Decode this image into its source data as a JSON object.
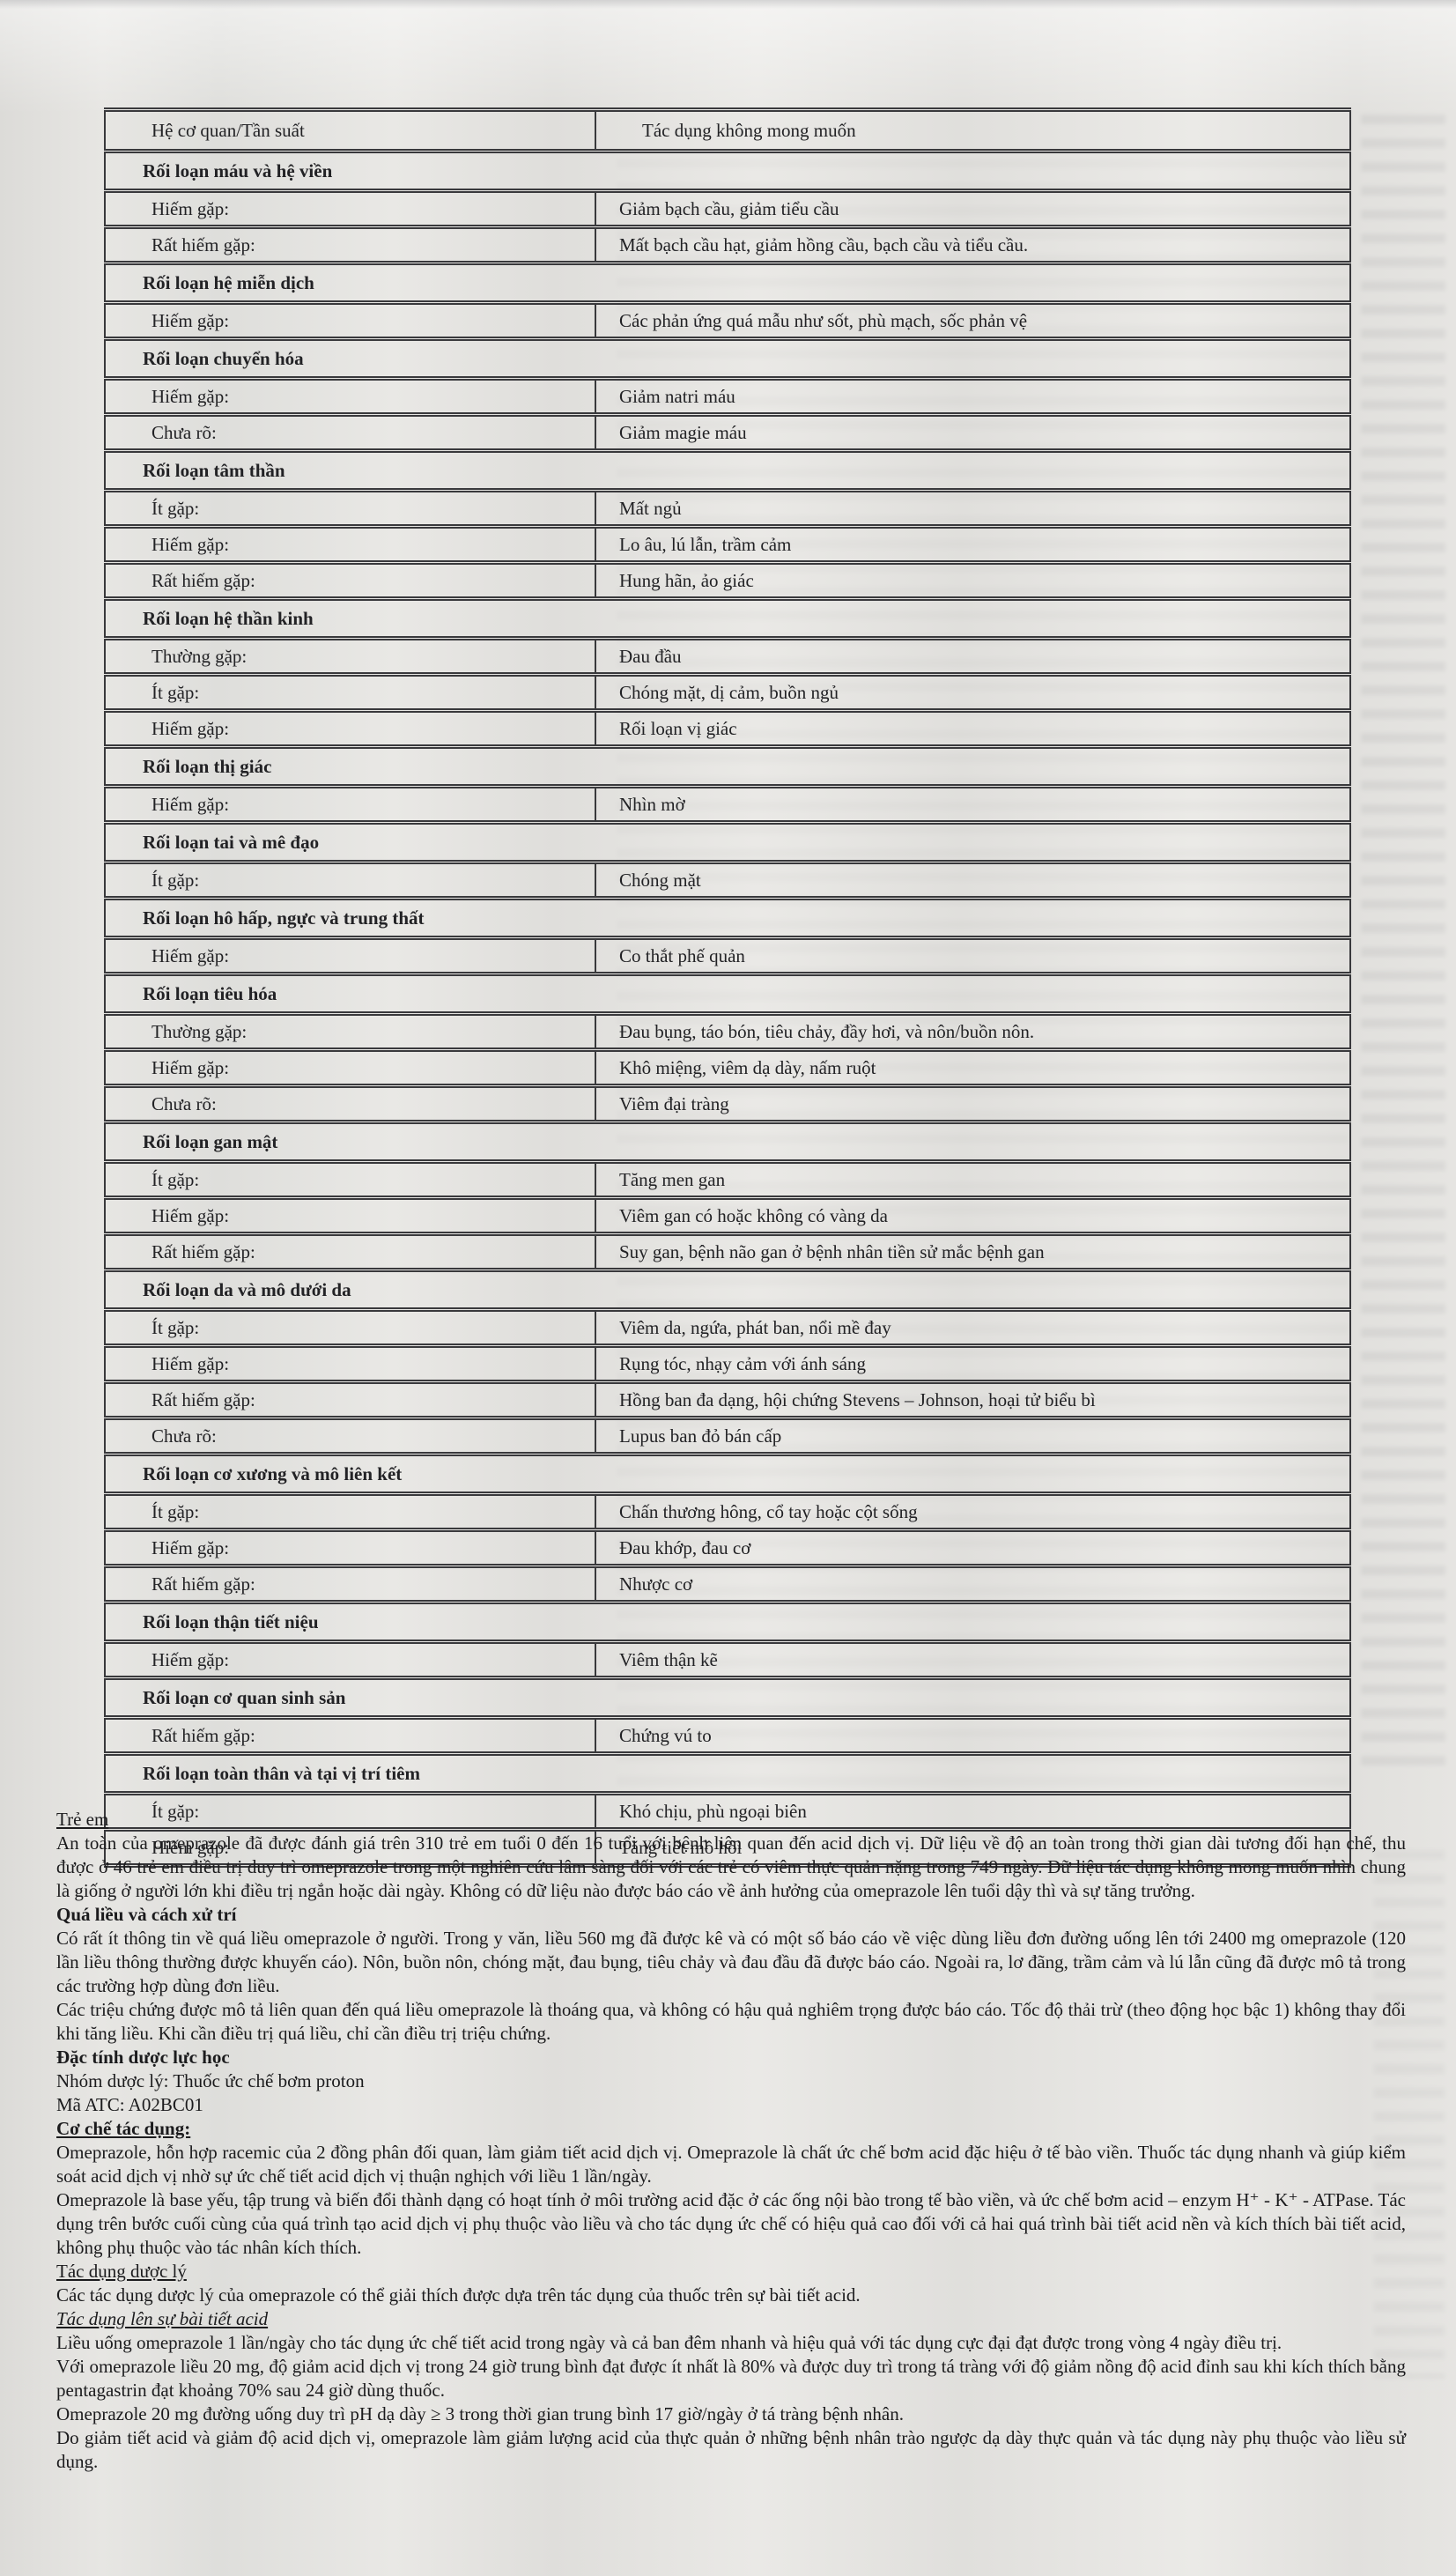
{
  "page": {
    "background": "#e3e2df",
    "text_color": "#1d1d1f",
    "border_color": "#39393c",
    "document_type": "scanned-drug-leaflet"
  },
  "table": {
    "header": {
      "organ_col": "Hệ cơ quan/Tần suất",
      "effect_col": "Tác dụng không mong muốn"
    },
    "rows": [
      {
        "type": "section",
        "label": "Rối loạn máu và hệ viền"
      },
      {
        "type": "entry",
        "frequency": "Hiếm gặp:",
        "effect": "Giảm bạch cầu, giảm tiểu cầu"
      },
      {
        "type": "entry",
        "frequency": "Rất hiếm gặp:",
        "effect": "Mất bạch cầu hạt, giảm hồng cầu, bạch cầu và tiểu cầu."
      },
      {
        "type": "section",
        "label": "Rối loạn hệ miễn dịch"
      },
      {
        "type": "entry",
        "frequency": "Hiếm gặp:",
        "effect": "Các phản ứng quá mẫu như sốt, phù mạch, sốc phản vệ"
      },
      {
        "type": "section",
        "label": "Rối loạn chuyển hóa"
      },
      {
        "type": "entry",
        "frequency": "Hiếm gặp:",
        "effect": "Giảm natri máu"
      },
      {
        "type": "entry",
        "frequency": "Chưa rõ:",
        "effect": "Giảm magie máu"
      },
      {
        "type": "section",
        "label": "Rối loạn tâm thần"
      },
      {
        "type": "entry",
        "frequency": "Ít gặp:",
        "effect": "Mất ngủ"
      },
      {
        "type": "entry",
        "frequency": "Hiếm gặp:",
        "effect": "Lo âu, lú lẫn, trầm cảm"
      },
      {
        "type": "entry",
        "frequency": "Rất hiếm gặp:",
        "effect": "Hung hãn, ảo giác"
      },
      {
        "type": "section",
        "label": "Rối loạn hệ thần kinh"
      },
      {
        "type": "entry",
        "frequency": "Thường gặp:",
        "effect": "Đau đầu"
      },
      {
        "type": "entry",
        "frequency": "Ít gặp:",
        "effect": "Chóng mặt, dị cảm, buồn ngủ"
      },
      {
        "type": "entry",
        "frequency": "Hiếm gặp:",
        "effect": "Rối loạn vị giác"
      },
      {
        "type": "section",
        "label": "Rối loạn thị giác"
      },
      {
        "type": "entry",
        "frequency": "Hiếm gặp:",
        "effect": "Nhìn mờ"
      },
      {
        "type": "section",
        "label": "Rối loạn tai và mê đạo"
      },
      {
        "type": "entry",
        "frequency": "Ít gặp:",
        "effect": "Chóng mặt"
      },
      {
        "type": "section",
        "label": "Rối loạn hô hấp, ngực và trung thất"
      },
      {
        "type": "entry",
        "frequency": "Hiếm gặp:",
        "effect": "Co thắt phế quản"
      },
      {
        "type": "section",
        "label": "Rối loạn tiêu hóa"
      },
      {
        "type": "entry",
        "frequency": "Thường gặp:",
        "effect": "Đau bụng, táo bón, tiêu chảy, đầy hơi, và nôn/buồn nôn."
      },
      {
        "type": "entry",
        "frequency": "Hiếm gặp:",
        "effect": "Khô miệng, viêm dạ dày, nấm ruột"
      },
      {
        "type": "entry",
        "frequency": "Chưa rõ:",
        "effect": "Viêm đại tràng"
      },
      {
        "type": "section",
        "label": "Rối loạn gan mật"
      },
      {
        "type": "entry",
        "frequency": "Ít gặp:",
        "effect": "Tăng men gan"
      },
      {
        "type": "entry",
        "frequency": "Hiếm gặp:",
        "effect": "Viêm gan có hoặc không có vàng da"
      },
      {
        "type": "entry",
        "frequency": "Rất hiếm gặp:",
        "effect": "Suy gan, bệnh não gan ở bệnh nhân tiền sử mắc bệnh gan"
      },
      {
        "type": "section",
        "label": "Rối loạn da và mô dưới da"
      },
      {
        "type": "entry",
        "frequency": "Ít gặp:",
        "effect": "Viêm da, ngứa, phát ban, nổi mề đay"
      },
      {
        "type": "entry",
        "frequency": "Hiếm gặp:",
        "effect": "Rụng tóc, nhạy cảm với ánh sáng"
      },
      {
        "type": "entry",
        "frequency": "Rất hiếm gặp:",
        "effect": "Hồng ban đa dạng, hội chứng Stevens – Johnson, hoại tử biểu bì"
      },
      {
        "type": "entry",
        "frequency": "Chưa rõ:",
        "effect": "Lupus ban đỏ bán cấp"
      },
      {
        "type": "section",
        "label": "Rối loạn cơ xương và mô liên kết"
      },
      {
        "type": "entry",
        "frequency": "Ít gặp:",
        "effect": "Chấn thương hông, cổ tay hoặc cột sống"
      },
      {
        "type": "entry",
        "frequency": "Hiếm gặp:",
        "effect": "Đau khớp, đau cơ"
      },
      {
        "type": "entry",
        "frequency": "Rất hiếm gặp:",
        "effect": "Nhược cơ"
      },
      {
        "type": "section",
        "label": "Rối loạn thận tiết niệu"
      },
      {
        "type": "entry",
        "frequency": "Hiếm gặp:",
        "effect": "Viêm thận kẽ"
      },
      {
        "type": "section",
        "label": "Rối loạn cơ quan sinh sản"
      },
      {
        "type": "entry",
        "frequency": "Rất hiếm gặp:",
        "effect": "Chứng vú to"
      },
      {
        "type": "section",
        "label": "Rối loạn toàn thân và tại vị trí tiêm"
      },
      {
        "type": "entry",
        "frequency": "Ít gặp:",
        "effect": "Khó chịu, phù ngoại biên"
      },
      {
        "type": "entry",
        "frequency": "Hiếm gặp:",
        "effect": "Tăng tiết mồ hôi"
      }
    ]
  },
  "body": {
    "blocks": [
      {
        "style": "u",
        "text": "Trẻ em"
      },
      {
        "style": "p",
        "text": "An toàn của omeprazole đã được đánh giá trên 310 trẻ em tuổi 0 đến 16 tuổi với bệnh liên quan đến acid dịch vị. Dữ liệu về độ an toàn trong thời gian dài tương đối hạn chế, thu được ở 46 trẻ em điều trị duy trì omeprazole trong một nghiên cứu lâm sàng đối với các trẻ có viêm thực quản nặng trong 749 ngày. Dữ liệu tác dụng không mong muốn nhìn chung là giống ở người lớn khi điều trị ngắn hoặc dài ngày. Không có dữ liệu nào được báo cáo về ảnh hưởng của omeprazole lên tuổi dậy thì và sự tăng trưởng."
      },
      {
        "style": "b",
        "text": "Quá liều và cách xử trí"
      },
      {
        "style": "p",
        "text": "Có rất ít thông tin về quá liều omeprazole ở người. Trong y văn, liều 560 mg đã được kê và có một số báo cáo về việc dùng liều đơn đường uống lên tới 2400 mg omeprazole (120 lần liều thông thường được khuyến cáo). Nôn, buồn nôn, chóng mặt, đau bụng, tiêu chảy và đau đầu đã được báo cáo. Ngoài ra, lơ đãng, trầm cảm và lú lẫn cũng đã được mô tả trong các trường hợp dùng đơn liều."
      },
      {
        "style": "p",
        "text": "Các triệu chứng được mô tả liên quan đến quá liều omeprazole là thoáng qua, và không có hậu quả nghiêm trọng được báo cáo. Tốc độ thải trừ (theo động học bậc 1) không thay đổi khi tăng liều. Khi cần điều trị quá liều, chỉ cần điều trị triệu chứng."
      },
      {
        "style": "b",
        "text": "Đặc tính dược lực học"
      },
      {
        "style": "p",
        "text": "Nhóm dược lý: Thuốc ức chế bơm proton"
      },
      {
        "style": "p",
        "text": "Mã ATC: A02BC01"
      },
      {
        "style": "bu",
        "text": "Cơ chế tác dụng:"
      },
      {
        "style": "p",
        "text": "Omeprazole, hỗn hợp racemic của 2 đồng phân đối quan, làm giảm tiết acid dịch vị. Omeprazole là chất ức chế bơm acid đặc hiệu ở tế bào viền. Thuốc tác dụng nhanh và giúp kiểm soát acid dịch vị nhờ sự ức chế tiết acid dịch vị thuận nghịch với liều 1 lần/ngày."
      },
      {
        "style": "p",
        "text": "Omeprazole là base yếu, tập trung và biến đổi thành dạng có hoạt tính ở môi trường acid đặc ở các ống nội bào trong tế bào viền, và ức chế bơm acid – enzym H⁺ - K⁺ - ATPase. Tác dụng trên bước cuối cùng của quá trình tạo acid dịch vị phụ thuộc vào liều và cho tác dụng ức chế có hiệu quả cao đối với cả hai quá trình bài tiết acid nền và kích thích bài tiết acid, không phụ thuộc vào tác nhân kích thích."
      },
      {
        "style": "u",
        "text": "Tác dụng dược lý"
      },
      {
        "style": "p",
        "text": "Các tác dụng dược lý của omeprazole có thể giải thích được dựa trên tác dụng của thuốc trên sự bài tiết acid."
      },
      {
        "style": "iu",
        "text": "Tác dụng lên sự bài tiết acid"
      },
      {
        "style": "p",
        "text": "Liều uống omeprazole 1 lần/ngày cho tác dụng ức chế tiết acid trong ngày và cả ban đêm nhanh và hiệu quả với tác dụng cực đại đạt được trong vòng 4 ngày điều trị."
      },
      {
        "style": "p",
        "text": "Với omeprazole liều 20 mg, độ giảm acid dịch vị trong 24 giờ trung bình đạt được ít nhất là 80% và được duy trì trong tá tràng với độ giảm nồng độ acid đỉnh sau khi kích thích bằng pentagastrin đạt khoảng 70% sau 24 giờ dùng thuốc."
      },
      {
        "style": "p",
        "text": "Omeprazole 20 mg đường uống duy trì pH dạ dày ≥ 3 trong thời gian trung bình 17 giờ/ngày ở tá tràng bệnh nhân."
      },
      {
        "style": "p",
        "text": "Do giảm tiết acid và giảm độ acid dịch vị, omeprazole làm giảm lượng acid của thực quản ở những bệnh nhân trào ngược dạ dày thực quản và tác dụng này phụ thuộc vào liều sử dụng."
      }
    ]
  }
}
